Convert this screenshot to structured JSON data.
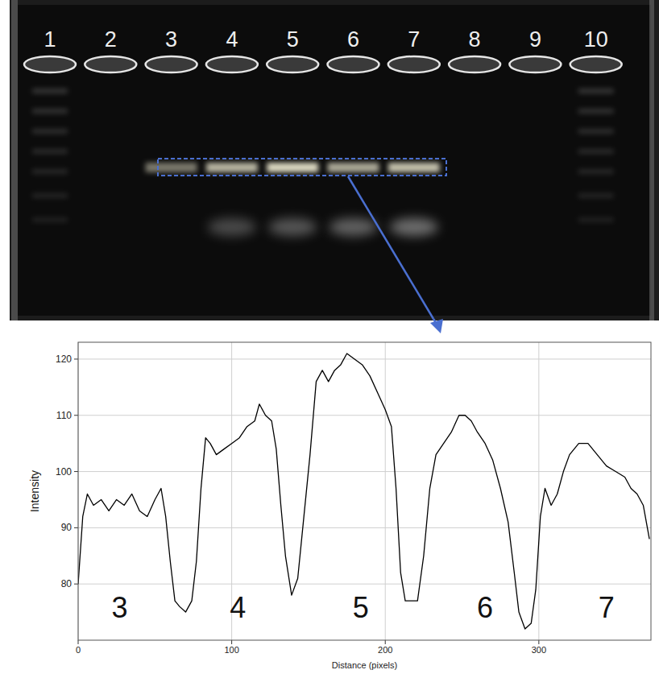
{
  "gel": {
    "lanes": [
      "1",
      "2",
      "3",
      "4",
      "5",
      "6",
      "7",
      "8",
      "9",
      "10"
    ]
  },
  "chart_data": {
    "type": "line",
    "x_label": "Distance (pixels)",
    "y_label": "Intensity",
    "color": "#000000",
    "grid": true,
    "xlim": [
      0,
      373
    ],
    "xticks": [
      0,
      100,
      200,
      300
    ],
    "ylim": [
      70,
      123
    ],
    "yticks": [
      80,
      90,
      100,
      110,
      120
    ],
    "x": [
      0,
      3,
      6,
      10,
      15,
      20,
      25,
      30,
      35,
      40,
      45,
      50,
      54,
      57,
      60,
      63,
      66,
      70,
      74,
      77,
      80,
      83,
      86,
      90,
      95,
      100,
      105,
      110,
      115,
      118,
      122,
      126,
      129,
      132,
      135,
      139,
      143,
      147,
      151,
      155,
      159,
      163,
      167,
      171,
      175,
      180,
      185,
      190,
      195,
      200,
      204,
      207,
      210,
      213,
      217,
      221,
      225,
      229,
      233,
      238,
      243,
      248,
      252,
      256,
      260,
      265,
      270,
      275,
      280,
      284,
      287,
      291,
      295,
      298,
      301,
      304,
      308,
      312,
      316,
      320,
      326,
      332,
      338,
      344,
      350,
      356,
      360,
      364,
      368,
      372
    ],
    "values": [
      80,
      92,
      96,
      94,
      95,
      93,
      95,
      94,
      96,
      93,
      92,
      95,
      97,
      92,
      84,
      77,
      76,
      75,
      77,
      84,
      97,
      106,
      105,
      103,
      104,
      105,
      106,
      108,
      109,
      112,
      110,
      109,
      104,
      94,
      85,
      78,
      81,
      92,
      103,
      116,
      118,
      116,
      118,
      119,
      121,
      120,
      119,
      117,
      114,
      111,
      108,
      97,
      82,
      77,
      77,
      77,
      85,
      97,
      103,
      105,
      107,
      110,
      110,
      109,
      107,
      105,
      102,
      97,
      91,
      82,
      75,
      72,
      73,
      79,
      92,
      97,
      94,
      96,
      100,
      103,
      105,
      105,
      103,
      101,
      100,
      99,
      97,
      96,
      94,
      88
    ],
    "annotations": [
      {
        "text": "3",
        "x": 27,
        "y": 74
      },
      {
        "text": "4",
        "x": 104,
        "y": 74
      },
      {
        "text": "5",
        "x": 184,
        "y": 74
      },
      {
        "text": "6",
        "x": 265,
        "y": 74
      },
      {
        "text": "7",
        "x": 344,
        "y": 74
      }
    ]
  }
}
